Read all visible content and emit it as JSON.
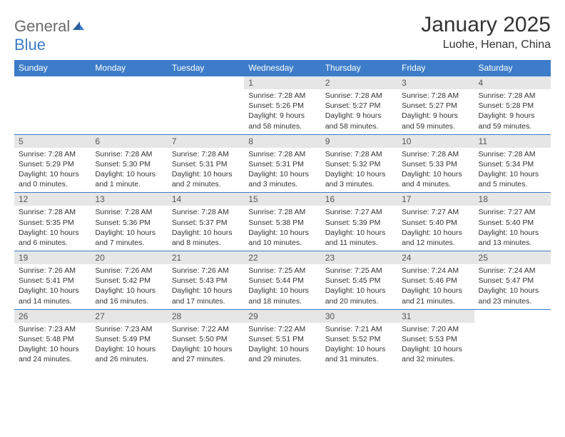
{
  "logo": {
    "word1": "General",
    "word2": "Blue"
  },
  "title": "January 2025",
  "location": "Luohe, Henan, China",
  "colors": {
    "header_bg": "#3d7cc9",
    "header_text": "#ffffff",
    "daynum_bg": "#e6e6e6",
    "border": "#3d7cc9",
    "text": "#333333",
    "logo_gray": "#6a6a6a",
    "logo_blue": "#3d7cc9"
  },
  "weekdays": [
    "Sunday",
    "Monday",
    "Tuesday",
    "Wednesday",
    "Thursday",
    "Friday",
    "Saturday"
  ],
  "weeks": [
    [
      {
        "empty": true
      },
      {
        "empty": true
      },
      {
        "empty": true
      },
      {
        "day": "1",
        "sunrise": "Sunrise: 7:28 AM",
        "sunset": "Sunset: 5:26 PM",
        "daylight": "Daylight: 9 hours and 58 minutes."
      },
      {
        "day": "2",
        "sunrise": "Sunrise: 7:28 AM",
        "sunset": "Sunset: 5:27 PM",
        "daylight": "Daylight: 9 hours and 58 minutes."
      },
      {
        "day": "3",
        "sunrise": "Sunrise: 7:28 AM",
        "sunset": "Sunset: 5:27 PM",
        "daylight": "Daylight: 9 hours and 59 minutes."
      },
      {
        "day": "4",
        "sunrise": "Sunrise: 7:28 AM",
        "sunset": "Sunset: 5:28 PM",
        "daylight": "Daylight: 9 hours and 59 minutes."
      }
    ],
    [
      {
        "day": "5",
        "sunrise": "Sunrise: 7:28 AM",
        "sunset": "Sunset: 5:29 PM",
        "daylight": "Daylight: 10 hours and 0 minutes."
      },
      {
        "day": "6",
        "sunrise": "Sunrise: 7:28 AM",
        "sunset": "Sunset: 5:30 PM",
        "daylight": "Daylight: 10 hours and 1 minute."
      },
      {
        "day": "7",
        "sunrise": "Sunrise: 7:28 AM",
        "sunset": "Sunset: 5:31 PM",
        "daylight": "Daylight: 10 hours and 2 minutes."
      },
      {
        "day": "8",
        "sunrise": "Sunrise: 7:28 AM",
        "sunset": "Sunset: 5:31 PM",
        "daylight": "Daylight: 10 hours and 3 minutes."
      },
      {
        "day": "9",
        "sunrise": "Sunrise: 7:28 AM",
        "sunset": "Sunset: 5:32 PM",
        "daylight": "Daylight: 10 hours and 3 minutes."
      },
      {
        "day": "10",
        "sunrise": "Sunrise: 7:28 AM",
        "sunset": "Sunset: 5:33 PM",
        "daylight": "Daylight: 10 hours and 4 minutes."
      },
      {
        "day": "11",
        "sunrise": "Sunrise: 7:28 AM",
        "sunset": "Sunset: 5:34 PM",
        "daylight": "Daylight: 10 hours and 5 minutes."
      }
    ],
    [
      {
        "day": "12",
        "sunrise": "Sunrise: 7:28 AM",
        "sunset": "Sunset: 5:35 PM",
        "daylight": "Daylight: 10 hours and 6 minutes."
      },
      {
        "day": "13",
        "sunrise": "Sunrise: 7:28 AM",
        "sunset": "Sunset: 5:36 PM",
        "daylight": "Daylight: 10 hours and 7 minutes."
      },
      {
        "day": "14",
        "sunrise": "Sunrise: 7:28 AM",
        "sunset": "Sunset: 5:37 PM",
        "daylight": "Daylight: 10 hours and 8 minutes."
      },
      {
        "day": "15",
        "sunrise": "Sunrise: 7:28 AM",
        "sunset": "Sunset: 5:38 PM",
        "daylight": "Daylight: 10 hours and 10 minutes."
      },
      {
        "day": "16",
        "sunrise": "Sunrise: 7:27 AM",
        "sunset": "Sunset: 5:39 PM",
        "daylight": "Daylight: 10 hours and 11 minutes."
      },
      {
        "day": "17",
        "sunrise": "Sunrise: 7:27 AM",
        "sunset": "Sunset: 5:40 PM",
        "daylight": "Daylight: 10 hours and 12 minutes."
      },
      {
        "day": "18",
        "sunrise": "Sunrise: 7:27 AM",
        "sunset": "Sunset: 5:40 PM",
        "daylight": "Daylight: 10 hours and 13 minutes."
      }
    ],
    [
      {
        "day": "19",
        "sunrise": "Sunrise: 7:26 AM",
        "sunset": "Sunset: 5:41 PM",
        "daylight": "Daylight: 10 hours and 14 minutes."
      },
      {
        "day": "20",
        "sunrise": "Sunrise: 7:26 AM",
        "sunset": "Sunset: 5:42 PM",
        "daylight": "Daylight: 10 hours and 16 minutes."
      },
      {
        "day": "21",
        "sunrise": "Sunrise: 7:26 AM",
        "sunset": "Sunset: 5:43 PM",
        "daylight": "Daylight: 10 hours and 17 minutes."
      },
      {
        "day": "22",
        "sunrise": "Sunrise: 7:25 AM",
        "sunset": "Sunset: 5:44 PM",
        "daylight": "Daylight: 10 hours and 18 minutes."
      },
      {
        "day": "23",
        "sunrise": "Sunrise: 7:25 AM",
        "sunset": "Sunset: 5:45 PM",
        "daylight": "Daylight: 10 hours and 20 minutes."
      },
      {
        "day": "24",
        "sunrise": "Sunrise: 7:24 AM",
        "sunset": "Sunset: 5:46 PM",
        "daylight": "Daylight: 10 hours and 21 minutes."
      },
      {
        "day": "25",
        "sunrise": "Sunrise: 7:24 AM",
        "sunset": "Sunset: 5:47 PM",
        "daylight": "Daylight: 10 hours and 23 minutes."
      }
    ],
    [
      {
        "day": "26",
        "sunrise": "Sunrise: 7:23 AM",
        "sunset": "Sunset: 5:48 PM",
        "daylight": "Daylight: 10 hours and 24 minutes."
      },
      {
        "day": "27",
        "sunrise": "Sunrise: 7:23 AM",
        "sunset": "Sunset: 5:49 PM",
        "daylight": "Daylight: 10 hours and 26 minutes."
      },
      {
        "day": "28",
        "sunrise": "Sunrise: 7:22 AM",
        "sunset": "Sunset: 5:50 PM",
        "daylight": "Daylight: 10 hours and 27 minutes."
      },
      {
        "day": "29",
        "sunrise": "Sunrise: 7:22 AM",
        "sunset": "Sunset: 5:51 PM",
        "daylight": "Daylight: 10 hours and 29 minutes."
      },
      {
        "day": "30",
        "sunrise": "Sunrise: 7:21 AM",
        "sunset": "Sunset: 5:52 PM",
        "daylight": "Daylight: 10 hours and 31 minutes."
      },
      {
        "day": "31",
        "sunrise": "Sunrise: 7:20 AM",
        "sunset": "Sunset: 5:53 PM",
        "daylight": "Daylight: 10 hours and 32 minutes."
      },
      {
        "empty": true
      }
    ]
  ]
}
